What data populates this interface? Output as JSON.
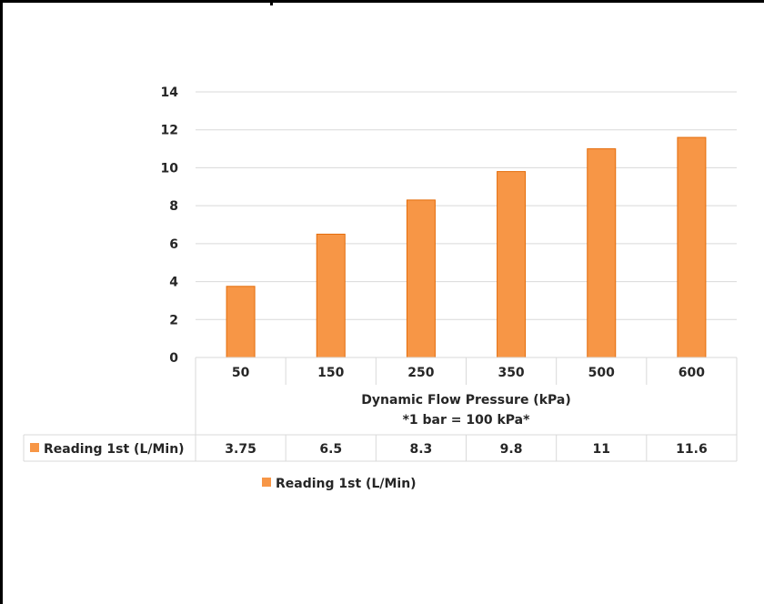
{
  "chart_data": {
    "type": "bar",
    "categories": [
      "50",
      "150",
      "250",
      "350",
      "500",
      "600"
    ],
    "series": [
      {
        "name": "Reading 1st (L/Min)",
        "values": [
          3.75,
          6.5,
          8.3,
          9.8,
          11,
          11.6
        ],
        "color": "#F79646"
      }
    ],
    "xlabel": "Dynamic Flow Pressure (kPa)",
    "xlabel_note": "*1 bar = 100 kPa*",
    "ylabel": "",
    "ylim": [
      0,
      14
    ],
    "yticks": [
      0,
      2,
      4,
      6,
      8,
      10,
      12,
      14
    ],
    "data_table": {
      "row_label": "Reading 1st (L/Min)",
      "cells": [
        "3.75",
        "6.5",
        "8.3",
        "9.8",
        "11",
        "11.6"
      ]
    },
    "legend": {
      "entries": [
        "Reading 1st (L/Min)"
      ],
      "position": "bottom"
    },
    "grid": true,
    "colors": {
      "bar_fill": "#F79646",
      "bar_stroke": "#E46C0A",
      "gridline": "#D9D9D9",
      "table_line": "#D9D9D9",
      "text": "#262626"
    }
  }
}
